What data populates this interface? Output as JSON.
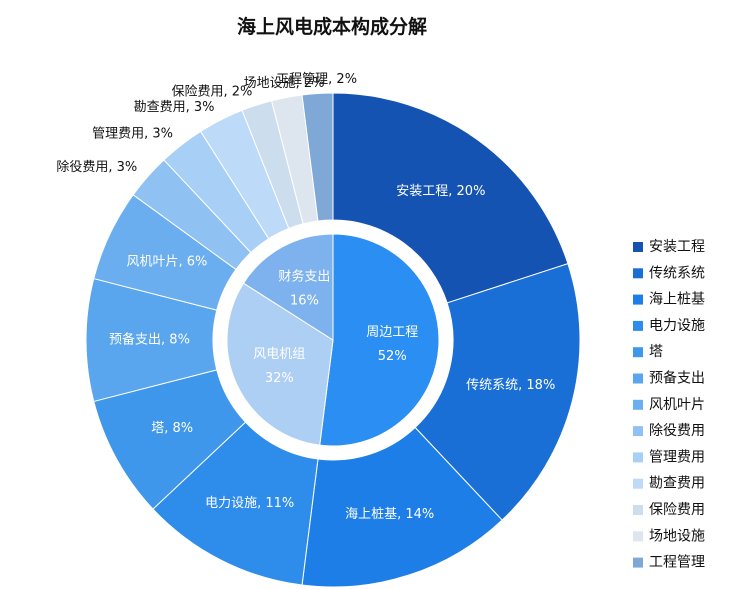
{
  "chart_data": {
    "type": "pie",
    "subtype": "nested-donut",
    "title": "海上风电成本构成分解",
    "inner": {
      "labels": [
        "周边工程",
        "风电机组",
        "财务支出"
      ],
      "values": [
        52,
        32,
        16
      ],
      "percent_labels": [
        "52%",
        "32%",
        "16%"
      ],
      "colors": [
        "#2A8EF2",
        "#AECFF4",
        "#7DB2EE"
      ]
    },
    "outer": {
      "labels": [
        "安装工程",
        "传统系统",
        "海上桩基",
        "电力设施",
        "塔",
        "预备支出",
        "风机叶片",
        "除役费用",
        "管理费用",
        "勘查费用",
        "保险费用",
        "场地设施",
        "工程管理"
      ],
      "values": [
        20,
        18,
        14,
        11,
        8,
        8,
        6,
        3,
        3,
        3,
        2,
        2,
        2
      ],
      "data_labels": [
        "安装工程, 20%",
        "传统系统, 18%",
        "海上桩基, 14%",
        "电力设施, 11%",
        "塔, 8%",
        "预备支出, 8%",
        "风机叶片, 6%",
        "除役费用, 3%",
        "管理费用, 3%",
        "勘查费用, 3%",
        "保险费用, 2%",
        "场地设施, 2%",
        "工程管理, 2%"
      ],
      "colors": [
        "#1553B3",
        "#1A6FD6",
        "#1E7EE8",
        "#2E8CEB",
        "#3F97EC",
        "#59A5EE",
        "#6BAEF0",
        "#8FC1F3",
        "#A8CFF6",
        "#BDDAF8",
        "#CCDDEE",
        "#DDE5EE",
        "#7FA8D6"
      ]
    },
    "legend": {
      "position": "right",
      "items": [
        "安装工程",
        "传统系统",
        "海上桩基",
        "电力设施",
        "塔",
        "预备支出",
        "风机叶片",
        "除役费用",
        "管理费用",
        "勘查费用",
        "保险费用",
        "场地设施",
        "工程管理"
      ]
    }
  }
}
